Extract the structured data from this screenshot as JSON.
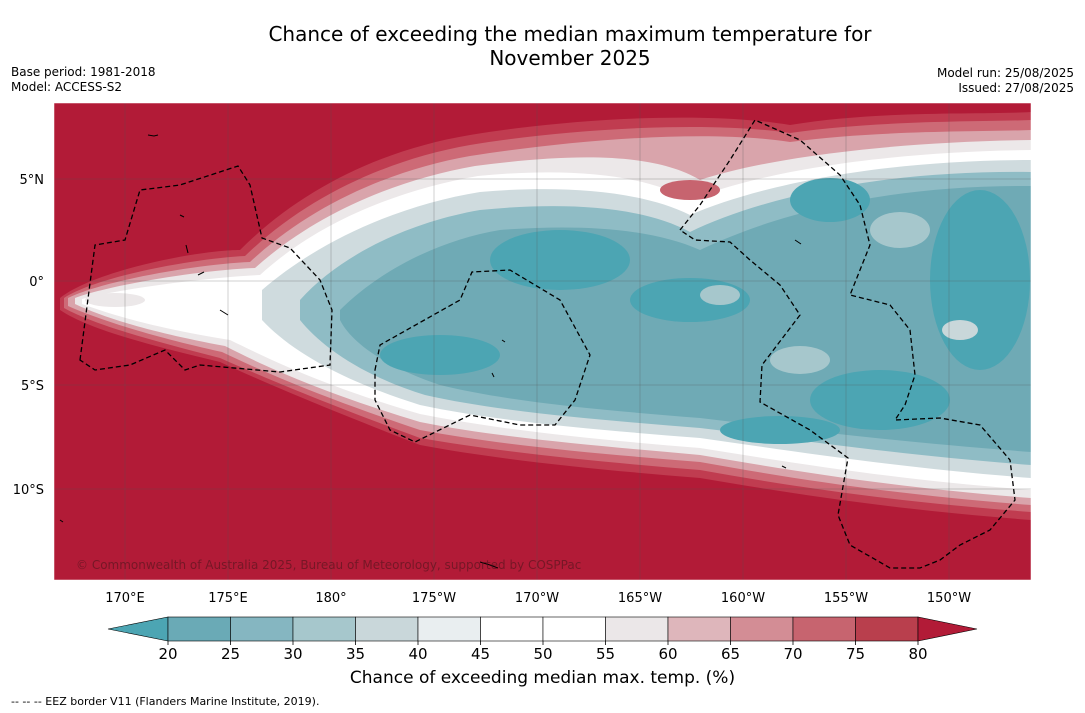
{
  "title_line1": "Chance of exceeding the median maximum temperature for",
  "title_line2": "November 2025",
  "base_period": "Base period: 1981-2018",
  "model": "Model: ACCESS-S2",
  "model_run": "Model run: 25/08/2025",
  "issued": "Issued: 27/08/2025",
  "copyright": "© Commonwealth of Australia 2025, Bureau of Meteorology, supported by COSPPac",
  "colorbar": {
    "title": "Chance of exceeding median max. temp. (%)",
    "ticks": [
      "20",
      "25",
      "30",
      "35",
      "40",
      "45",
      "50",
      "55",
      "60",
      "65",
      "70",
      "75",
      "80"
    ],
    "colors": [
      "#6aaab6",
      "#85b6c1",
      "#a6c7cc",
      "#c9d7da",
      "#e9eef0",
      "#ffffff",
      "#ffffff",
      "#ebe7e8",
      "#deb6bb",
      "#d38d95",
      "#c7646f",
      "#b93f4d"
    ],
    "low_arrow_color": "#4ca5b3",
    "high_arrow_color": "#b21b37"
  },
  "lon_labels": [
    "170°E",
    "175°E",
    "180°",
    "175°W",
    "170°W",
    "165°W",
    "160°W",
    "155°W",
    "150°W"
  ],
  "lat_labels": [
    "5°N",
    "0°",
    "5°S",
    "10°S"
  ],
  "legend_text": "--  --  -- EEZ border V11 (Flanders Marine Institute, 2019)."
}
